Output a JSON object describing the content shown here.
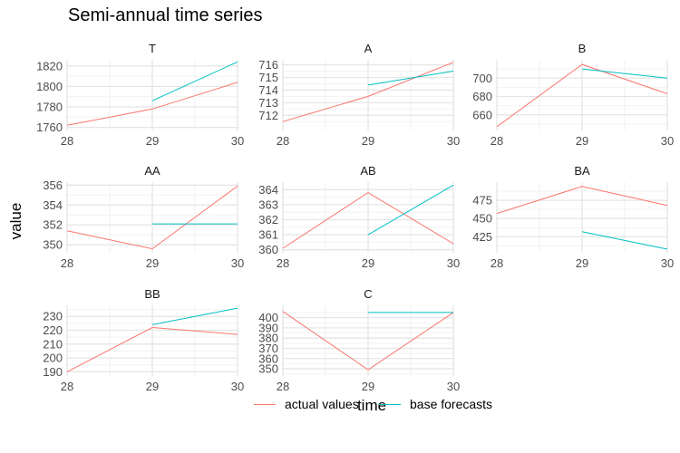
{
  "chart_data": {
    "type": "line",
    "title": "Semi-annual time series",
    "xlabel": "time",
    "ylabel": "value",
    "colors": {
      "actual values": "#F8766D",
      "base forecasts": "#00BFC4"
    },
    "legend": {
      "position": "bottom",
      "entries": [
        {
          "name": "actual values",
          "color": "#F8766D"
        },
        {
          "name": "base forecasts",
          "color": "#00BFC4"
        }
      ]
    },
    "grid": true,
    "x_ticks": [
      "28",
      "29",
      "30"
    ],
    "panels": [
      {
        "title": "T",
        "ylim": [
          1757,
          1826
        ],
        "yticks": [
          1760,
          1780,
          1800,
          1820
        ],
        "series": [
          {
            "name": "actual values",
            "x": [
              28,
              29,
              30
            ],
            "values": [
              1762,
              1778,
              1804
            ]
          },
          {
            "name": "base forecasts",
            "x": [
              29,
              30
            ],
            "values": [
              1786,
              1824
            ]
          }
        ]
      },
      {
        "title": "A",
        "ylim": [
          710.8,
          716.4
        ],
        "yticks": [
          712,
          713,
          714,
          715,
          716
        ],
        "series": [
          {
            "name": "actual values",
            "x": [
              28,
              29,
              30
            ],
            "values": [
              711.5,
              713.5,
              716.2
            ]
          },
          {
            "name": "base forecasts",
            "x": [
              29,
              30
            ],
            "values": [
              714.4,
              715.5
            ]
          }
        ]
      },
      {
        "title": "B",
        "ylim": [
          643,
          720
        ],
        "yticks": [
          660,
          680,
          700
        ],
        "series": [
          {
            "name": "actual values",
            "x": [
              28,
              29,
              30
            ],
            "values": [
              647,
              715,
              683
            ]
          },
          {
            "name": "base forecasts",
            "x": [
              29,
              30
            ],
            "values": [
              710,
              700
            ]
          }
        ]
      },
      {
        "title": "AA",
        "ylim": [
          349.2,
          356.3
        ],
        "yticks": [
          350,
          352,
          354,
          356
        ],
        "series": [
          {
            "name": "actual values",
            "x": [
              28,
              29,
              30
            ],
            "values": [
              351.4,
              349.6,
              355.9
            ]
          },
          {
            "name": "base forecasts",
            "x": [
              29,
              30
            ],
            "values": [
              352.1,
              352.1
            ]
          }
        ]
      },
      {
        "title": "AB",
        "ylim": [
          359.8,
          364.5
        ],
        "yticks": [
          360,
          361,
          362,
          363,
          364
        ],
        "series": [
          {
            "name": "actual values",
            "x": [
              28,
              29,
              30
            ],
            "values": [
              360.1,
              363.8,
              360.4
            ]
          },
          {
            "name": "base forecasts",
            "x": [
              29,
              30
            ],
            "values": [
              361.0,
              364.3
            ]
          }
        ]
      },
      {
        "title": "BA",
        "ylim": [
          403,
          500
        ],
        "yticks": [
          425,
          450,
          475
        ],
        "series": [
          {
            "name": "actual values",
            "x": [
              28,
              29,
              30
            ],
            "values": [
              457,
              494,
              468
            ]
          },
          {
            "name": "base forecasts",
            "x": [
              29,
              30
            ],
            "values": [
              432,
              408
            ]
          }
        ]
      },
      {
        "title": "BB",
        "ylim": [
          187,
          238
        ],
        "yticks": [
          190,
          200,
          210,
          220,
          230
        ],
        "series": [
          {
            "name": "actual values",
            "x": [
              28,
              29,
              30
            ],
            "values": [
              190,
              222,
              217
            ]
          },
          {
            "name": "base forecasts",
            "x": [
              29,
              30
            ],
            "values": [
              224,
              236
            ]
          }
        ]
      },
      {
        "title": "C",
        "ylim": [
          343,
          412
        ],
        "yticks": [
          350,
          360,
          370,
          380,
          390,
          400
        ],
        "series": [
          {
            "name": "actual values",
            "x": [
              28,
              29,
              30
            ],
            "values": [
              406,
              349,
              405
            ]
          },
          {
            "name": "base forecasts",
            "x": [
              29,
              30
            ],
            "values": [
              405,
              405
            ]
          }
        ]
      }
    ]
  }
}
